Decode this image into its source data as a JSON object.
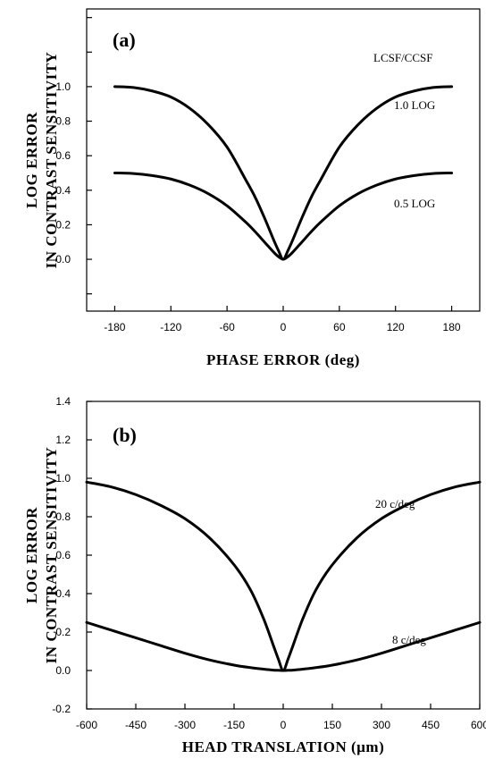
{
  "chart_data": [
    {
      "type": "line",
      "panel_label": "(a)",
      "xlabel": "PHASE ERROR (deg)",
      "ylabel_line1": "LOG ERROR",
      "ylabel_line2": "IN CONTRAST SENSITIVITY",
      "xlim": [
        -210,
        210
      ],
      "ylim": [
        -0.3,
        1.45
      ],
      "xticks": [
        -180,
        -120,
        -60,
        0,
        60,
        120,
        180
      ],
      "xtick_labels": [
        "-180",
        "-120",
        "-60",
        "0",
        "60",
        "120",
        "180"
      ],
      "yticks": [
        0.0,
        0.2,
        0.4,
        0.6,
        0.8,
        1.0
      ],
      "ytick_labels": [
        "0.0",
        "0.2",
        "0.4",
        "0.6",
        "0.8",
        "1.0"
      ],
      "extra_yticks": [
        -0.2,
        1.2,
        1.4
      ],
      "legend_title": "LCSF/CCSF",
      "x": [
        -180,
        -160,
        -140,
        -120,
        -100,
        -80,
        -60,
        -40,
        -30,
        -20,
        -10,
        -5,
        0,
        5,
        10,
        20,
        30,
        40,
        60,
        80,
        100,
        120,
        140,
        160,
        180
      ],
      "series": [
        {
          "name": "1.0 LOG",
          "values": [
            1.0,
            0.995,
            0.975,
            0.94,
            0.875,
            0.78,
            0.65,
            0.46,
            0.36,
            0.24,
            0.11,
            0.05,
            0.0,
            0.05,
            0.11,
            0.24,
            0.36,
            0.46,
            0.65,
            0.78,
            0.875,
            0.94,
            0.975,
            0.995,
            1.0
          ]
        },
        {
          "name": "0.5 LOG",
          "values": [
            0.5,
            0.497,
            0.485,
            0.465,
            0.43,
            0.38,
            0.31,
            0.215,
            0.16,
            0.1,
            0.04,
            0.015,
            0.0,
            0.015,
            0.04,
            0.1,
            0.16,
            0.215,
            0.31,
            0.38,
            0.43,
            0.465,
            0.485,
            0.497,
            0.5
          ]
        }
      ]
    },
    {
      "type": "line",
      "panel_label": "(b)",
      "xlabel": "HEAD TRANSLATION (µm)",
      "ylabel_line1": "LOG ERROR",
      "ylabel_line2": "IN CONTRAST SENSITIVITY",
      "xlim": [
        -600,
        600
      ],
      "ylim": [
        -0.2,
        1.4
      ],
      "xticks": [
        -600,
        -450,
        -300,
        -150,
        0,
        150,
        300,
        450,
        600
      ],
      "xtick_labels": [
        "-600",
        "-450",
        "-300",
        "-150",
        "0",
        "150",
        "300",
        "450",
        "600"
      ],
      "yticks": [
        -0.2,
        0.0,
        0.2,
        0.4,
        0.6,
        0.8,
        1.0,
        1.2,
        1.4
      ],
      "ytick_labels": [
        "-0.2",
        "0.0",
        "0.2",
        "0.4",
        "0.6",
        "0.8",
        "1.0",
        "1.2",
        "1.4"
      ],
      "x": [
        -600,
        -525,
        -450,
        -375,
        -300,
        -225,
        -150,
        -100,
        -60,
        -30,
        -15,
        0,
        15,
        30,
        60,
        100,
        150,
        225,
        300,
        375,
        450,
        525,
        600
      ],
      "series": [
        {
          "name": "20 c/deg",
          "values": [
            0.98,
            0.955,
            0.915,
            0.86,
            0.79,
            0.69,
            0.55,
            0.42,
            0.27,
            0.13,
            0.06,
            0.0,
            0.06,
            0.13,
            0.27,
            0.42,
            0.55,
            0.69,
            0.79,
            0.86,
            0.915,
            0.955,
            0.98
          ]
        },
        {
          "name": "8 c/deg",
          "values": [
            0.25,
            0.21,
            0.17,
            0.13,
            0.09,
            0.055,
            0.028,
            0.015,
            0.007,
            0.002,
            0.001,
            0.0,
            0.001,
            0.002,
            0.007,
            0.015,
            0.028,
            0.055,
            0.09,
            0.13,
            0.17,
            0.21,
            0.25
          ]
        }
      ]
    }
  ]
}
